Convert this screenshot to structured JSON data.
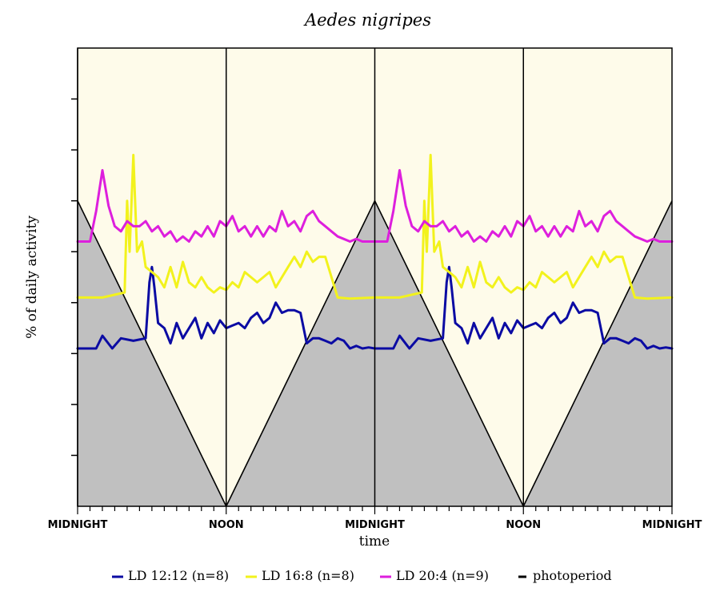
{
  "chart_data": {
    "type": "line",
    "title": "Aedes nigripes",
    "xlabel": "time",
    "ylabel": "% of daily activity",
    "x_tick_labels": [
      "MIDNIGHT",
      "NOON",
      "MIDNIGHT",
      "NOON",
      "MIDNIGHT"
    ],
    "x_range_hours": [
      0,
      48
    ],
    "y_range": [
      0,
      9
    ],
    "y_tick_count": 8,
    "colors": {
      "dark": "#c0c0c0",
      "light": "#fefbea",
      "ld12": "#0b0ba3",
      "ld16": "#f2f21d",
      "ld20": "#dd1fdd",
      "photoperiod": "#000000"
    },
    "photoperiod": {
      "x": [
        0,
        12,
        24,
        36,
        48
      ],
      "y": [
        6,
        0,
        6,
        0,
        6
      ]
    },
    "series": [
      {
        "name": "LD 12:12 (n=8)",
        "color": "#0b0ba3",
        "x": [
          0,
          1.5,
          2,
          2.8,
          3.5,
          4.5,
          5.5,
          5.8,
          6,
          6.2,
          6.5,
          7,
          7.5,
          8,
          8.5,
          9,
          9.5,
          10,
          10.5,
          11,
          11.5,
          12,
          12.5,
          13,
          13.5,
          14,
          14.5,
          15,
          15.5,
          16,
          16.5,
          17,
          17.5,
          18,
          18.5,
          19,
          19.5,
          20,
          20.5,
          21,
          21.5,
          22,
          22.5,
          23,
          23.5,
          24,
          25.5,
          26,
          26.8,
          27.5,
          28.5,
          29.5,
          29.8,
          30,
          30.2,
          30.5,
          31,
          31.5,
          32,
          32.5,
          33,
          33.5,
          34,
          34.5,
          35,
          35.5,
          36,
          36.5,
          37,
          37.5,
          38,
          38.5,
          39,
          39.5,
          40,
          40.5,
          41,
          41.5,
          42,
          42.5,
          43,
          43.5,
          44,
          44.5,
          45,
          45.5,
          46,
          46.5,
          47,
          47.5,
          48
        ],
        "y": [
          3.1,
          3.1,
          3.35,
          3.1,
          3.3,
          3.25,
          3.3,
          4.4,
          4.7,
          4.3,
          3.6,
          3.5,
          3.2,
          3.6,
          3.3,
          3.5,
          3.7,
          3.3,
          3.6,
          3.4,
          3.65,
          3.5,
          3.55,
          3.6,
          3.5,
          3.7,
          3.8,
          3.6,
          3.7,
          4.0,
          3.8,
          3.85,
          3.85,
          3.8,
          3.2,
          3.3,
          3.3,
          3.25,
          3.2,
          3.3,
          3.25,
          3.1,
          3.15,
          3.1,
          3.12,
          3.1,
          3.1,
          3.35,
          3.1,
          3.3,
          3.25,
          3.3,
          4.4,
          4.7,
          4.3,
          3.6,
          3.5,
          3.2,
          3.6,
          3.3,
          3.5,
          3.7,
          3.3,
          3.6,
          3.4,
          3.65,
          3.5,
          3.55,
          3.6,
          3.5,
          3.7,
          3.8,
          3.6,
          3.7,
          4.0,
          3.8,
          3.85,
          3.85,
          3.8,
          3.2,
          3.3,
          3.3,
          3.25,
          3.2,
          3.3,
          3.25,
          3.1,
          3.15,
          3.1,
          3.12,
          3.1
        ]
      },
      {
        "name": "LD 16:8 (n=8)",
        "color": "#f2f21d",
        "x": [
          0,
          2,
          3.8,
          4,
          4.2,
          4.5,
          4.8,
          5.2,
          5.5,
          6,
          6.5,
          7,
          7.5,
          8,
          8.5,
          9,
          9.5,
          10,
          10.5,
          11,
          11.5,
          12,
          12.5,
          13,
          13.5,
          14,
          14.5,
          15,
          15.5,
          16,
          16.5,
          17,
          17.5,
          18,
          18.5,
          19,
          19.5,
          20,
          21,
          22,
          24,
          26,
          27.8,
          28,
          28.2,
          28.5,
          28.8,
          29.2,
          29.5,
          30,
          30.5,
          31,
          31.5,
          32,
          32.5,
          33,
          33.5,
          34,
          34.5,
          35,
          35.5,
          36,
          36.5,
          37,
          37.5,
          38,
          38.5,
          39,
          39.5,
          40,
          40.5,
          41,
          41.5,
          42,
          42.5,
          43,
          43.5,
          44,
          45,
          46,
          48
        ],
        "y": [
          4.1,
          4.1,
          4.2,
          6.0,
          5.0,
          6.9,
          5.0,
          5.2,
          4.7,
          4.6,
          4.5,
          4.3,
          4.7,
          4.3,
          4.8,
          4.4,
          4.3,
          4.5,
          4.3,
          4.2,
          4.3,
          4.25,
          4.4,
          4.3,
          4.6,
          4.5,
          4.4,
          4.5,
          4.6,
          4.3,
          4.5,
          4.7,
          4.9,
          4.7,
          5.0,
          4.8,
          4.9,
          4.9,
          4.1,
          4.08,
          4.1,
          4.1,
          4.2,
          6.0,
          5.0,
          6.9,
          5.0,
          5.2,
          4.7,
          4.6,
          4.5,
          4.3,
          4.7,
          4.3,
          4.8,
          4.4,
          4.3,
          4.5,
          4.3,
          4.2,
          4.3,
          4.25,
          4.4,
          4.3,
          4.6,
          4.5,
          4.4,
          4.5,
          4.6,
          4.3,
          4.5,
          4.7,
          4.9,
          4.7,
          5.0,
          4.8,
          4.9,
          4.9,
          4.1,
          4.08,
          4.1
        ]
      },
      {
        "name": "LD 20:4 (n=9)",
        "color": "#dd1fdd",
        "x": [
          0,
          1,
          1.5,
          2,
          2.5,
          3,
          3.5,
          4,
          4.5,
          5,
          5.5,
          6,
          6.5,
          7,
          7.5,
          8,
          8.5,
          9,
          9.5,
          10,
          10.5,
          11,
          11.5,
          12,
          12.5,
          13,
          13.5,
          14,
          14.5,
          15,
          15.5,
          16,
          16.5,
          17,
          17.5,
          18,
          18.5,
          19,
          19.5,
          20,
          20.5,
          21,
          21.5,
          22,
          22.5,
          23,
          23.5,
          24,
          25,
          25.5,
          26,
          26.5,
          27,
          27.5,
          28,
          28.5,
          29,
          29.5,
          30,
          30.5,
          31,
          31.5,
          32,
          32.5,
          33,
          33.5,
          34,
          34.5,
          35,
          35.5,
          36,
          36.5,
          37,
          37.5,
          38,
          38.5,
          39,
          39.5,
          40,
          40.5,
          41,
          41.5,
          42,
          42.5,
          43,
          43.5,
          44,
          44.5,
          45,
          45.5,
          46,
          46.5,
          47,
          47.5,
          48
        ],
        "y": [
          5.2,
          5.2,
          5.8,
          6.6,
          5.9,
          5.5,
          5.4,
          5.6,
          5.5,
          5.5,
          5.6,
          5.4,
          5.5,
          5.3,
          5.4,
          5.2,
          5.3,
          5.2,
          5.4,
          5.3,
          5.5,
          5.3,
          5.6,
          5.5,
          5.7,
          5.4,
          5.5,
          5.3,
          5.5,
          5.3,
          5.5,
          5.4,
          5.8,
          5.5,
          5.6,
          5.4,
          5.7,
          5.8,
          5.6,
          5.5,
          5.4,
          5.3,
          5.25,
          5.2,
          5.25,
          5.2,
          5.2,
          5.2,
          5.2,
          5.8,
          6.6,
          5.9,
          5.5,
          5.4,
          5.6,
          5.5,
          5.5,
          5.6,
          5.4,
          5.5,
          5.3,
          5.4,
          5.2,
          5.3,
          5.2,
          5.4,
          5.3,
          5.5,
          5.3,
          5.6,
          5.5,
          5.7,
          5.4,
          5.5,
          5.3,
          5.5,
          5.3,
          5.5,
          5.4,
          5.8,
          5.5,
          5.6,
          5.4,
          5.7,
          5.8,
          5.6,
          5.5,
          5.4,
          5.3,
          5.25,
          5.2,
          5.25,
          5.2,
          5.2,
          5.2
        ]
      }
    ],
    "legend": [
      {
        "label": "LD 12:12 (n=8)",
        "color": "#0b0ba3"
      },
      {
        "label": "LD 16:8 (n=8)",
        "color": "#f2f21d"
      },
      {
        "label": "LD 20:4 (n=9)",
        "color": "#dd1fdd"
      },
      {
        "label": "photoperiod",
        "color": "#000000"
      }
    ],
    "legend_placement": "bottom"
  }
}
